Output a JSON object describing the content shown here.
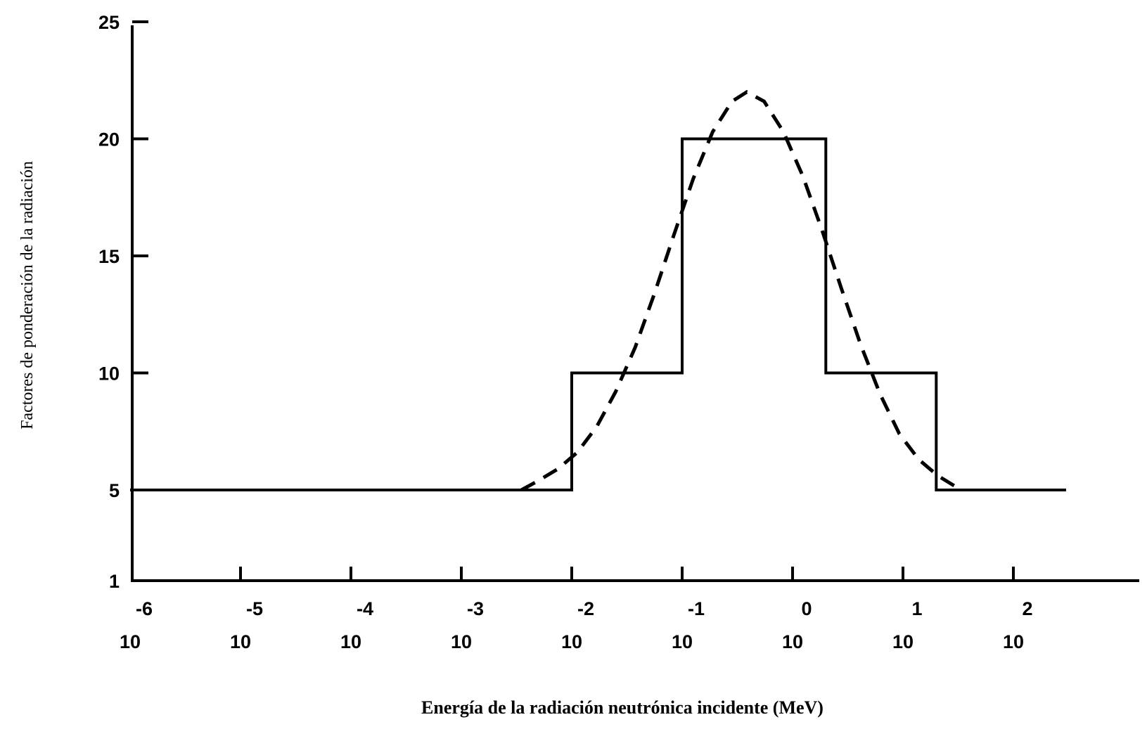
{
  "chart_data": {
    "type": "line",
    "title": "",
    "xlabel": "Energía de la radiación neutrónica incidente (MeV)",
    "ylabel": "Factores de ponderación de la radiación",
    "x_scale": "log",
    "xlim": [
      1e-06,
      300.0
    ],
    "ylim": [
      1,
      25
    ],
    "y_ticks": [
      {
        "value": 1,
        "label": "1"
      },
      {
        "value": 5,
        "label": "5"
      },
      {
        "value": 10,
        "label": "10"
      },
      {
        "value": 15,
        "label": "15"
      },
      {
        "value": 20,
        "label": "20"
      },
      {
        "value": 25,
        "label": "25"
      }
    ],
    "x_ticks": [
      {
        "value": 1e-06,
        "base": "10",
        "exponent": "-6"
      },
      {
        "value": 1e-05,
        "base": "10",
        "exponent": "-5"
      },
      {
        "value": 0.0001,
        "base": "10",
        "exponent": "-4"
      },
      {
        "value": 0.001,
        "base": "10",
        "exponent": "-3"
      },
      {
        "value": 0.01,
        "base": "10",
        "exponent": "-2"
      },
      {
        "value": 0.1,
        "base": "10",
        "exponent": "-1"
      },
      {
        "value": 1,
        "base": "10",
        "exponent": "0"
      },
      {
        "value": 10,
        "base": "10",
        "exponent": "1"
      },
      {
        "value": 100,
        "base": "10",
        "exponent": "2"
      }
    ],
    "grid": false,
    "legend": "none",
    "series": [
      {
        "style": "solid step",
        "color": "#000000",
        "points": [
          [
            1e-06,
            5
          ],
          [
            0.01,
            5
          ],
          [
            0.01,
            10
          ],
          [
            0.1,
            10
          ],
          [
            0.1,
            20
          ],
          [
            2,
            20
          ],
          [
            2,
            10
          ],
          [
            20,
            10
          ],
          [
            20,
            5
          ],
          [
            300,
            5
          ]
        ]
      },
      {
        "style": "dashed",
        "color": "#000000",
        "points": [
          [
            0.0035,
            5
          ],
          [
            0.005,
            5.4
          ],
          [
            0.0075,
            5.9
          ],
          [
            0.0112,
            6.6
          ],
          [
            0.0168,
            7.7
          ],
          [
            0.025,
            9.2
          ],
          [
            0.0376,
            11.1
          ],
          [
            0.0562,
            13.4
          ],
          [
            0.0842,
            15.9
          ],
          [
            0.126,
            18.3
          ],
          [
            0.189,
            20.3
          ],
          [
            0.283,
            21.6
          ],
          [
            0.385,
            22
          ],
          [
            0.552,
            21.6
          ],
          [
            0.826,
            20.3
          ],
          [
            1.24,
            18.4
          ],
          [
            1.85,
            16.1
          ],
          [
            2.77,
            13.6
          ],
          [
            4.14,
            11.2
          ],
          [
            6.2,
            9.1
          ],
          [
            9.27,
            7.4
          ],
          [
            13.9,
            6.3
          ],
          [
            20.8,
            5.6
          ],
          [
            31.1,
            5.1
          ]
        ]
      }
    ]
  }
}
